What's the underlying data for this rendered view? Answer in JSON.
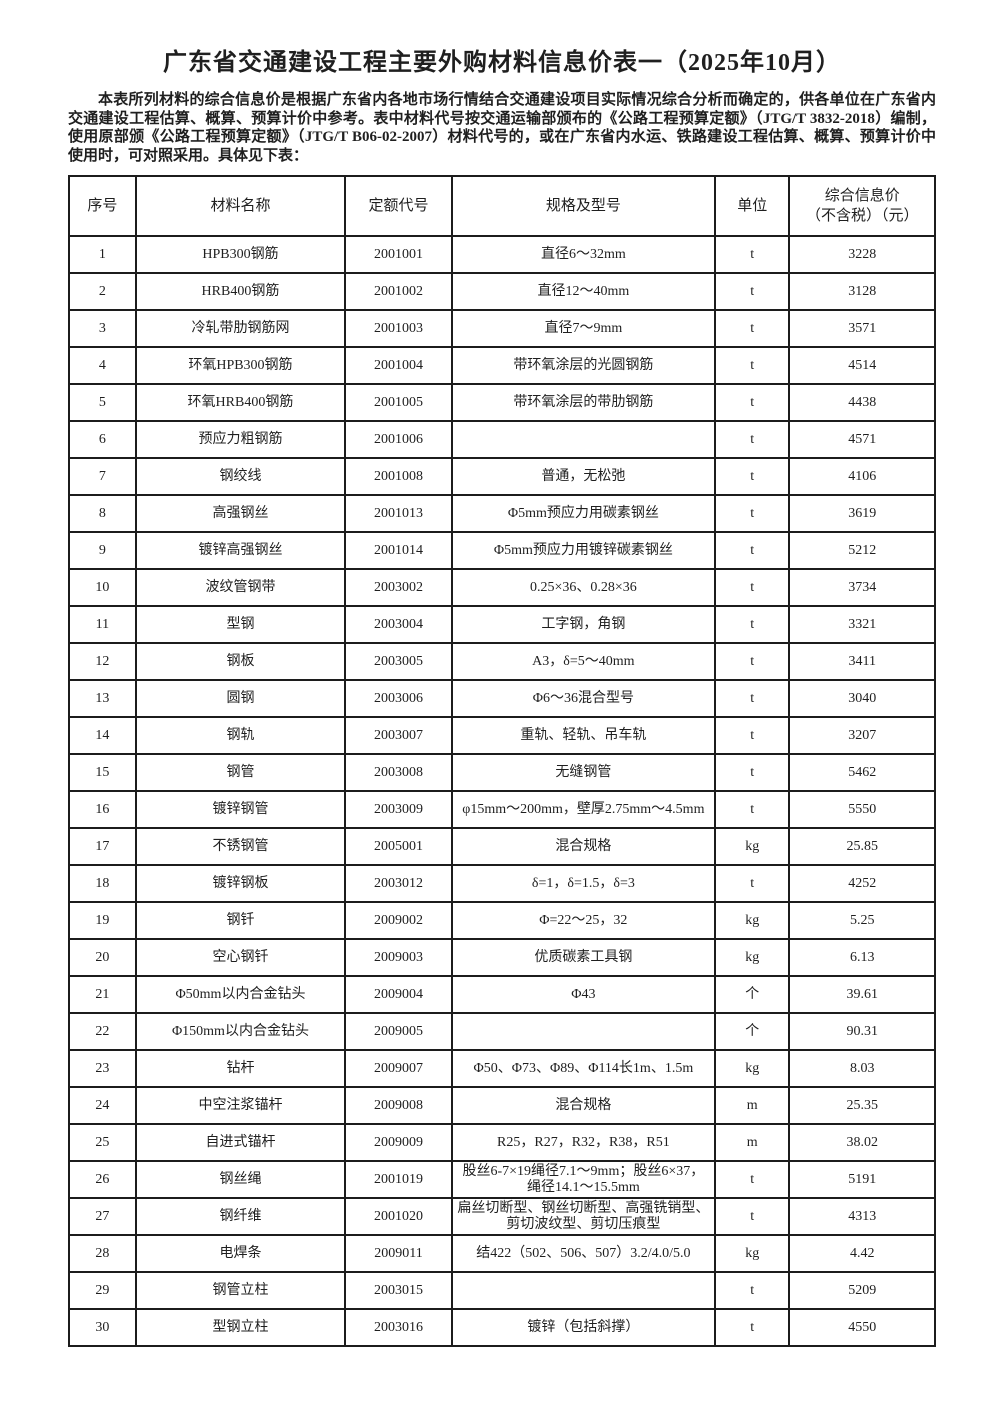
{
  "doc": {
    "title": "广东省交通建设工程主要外购材料信息价表一（2025年10月）",
    "intro": "本表所列材料的综合信息价是根据广东省内各地市场行情结合交通建设项目实际情况综合分析而确定的，供各单位在广东省内交通建设工程估算、概算、预算计价中参考。表中材料代号按交通运输部颁布的《公路工程预算定额》（JTG/T 3832-2018）编制，使用原部颁《公路工程预算定额》（JTG/T B06-02-2007）材料代号的，或在广东省内水运、铁路建设工程估算、概算、预算计价中使用时，可对照采用。具体见下表："
  },
  "table": {
    "headers": {
      "no": "序号",
      "name": "材料名称",
      "code": "定额代号",
      "spec": "规格及型号",
      "unit": "单位",
      "price": "综合信息价\n（不含税）（元）"
    },
    "rows": [
      {
        "no": "1",
        "name": "HPB300钢筋",
        "code": "2001001",
        "spec": "直径6～32mm",
        "unit": "t",
        "price": "3228"
      },
      {
        "no": "2",
        "name": "HRB400钢筋",
        "code": "2001002",
        "spec": "直径12～40mm",
        "unit": "t",
        "price": "3128"
      },
      {
        "no": "3",
        "name": "冷轧带肋钢筋网",
        "code": "2001003",
        "spec": "直径7～9mm",
        "unit": "t",
        "price": "3571"
      },
      {
        "no": "4",
        "name": "环氧HPB300钢筋",
        "code": "2001004",
        "spec": "带环氧涂层的光圆钢筋",
        "unit": "t",
        "price": "4514"
      },
      {
        "no": "5",
        "name": "环氧HRB400钢筋",
        "code": "2001005",
        "spec": "带环氧涂层的带肋钢筋",
        "unit": "t",
        "price": "4438"
      },
      {
        "no": "6",
        "name": "预应力粗钢筋",
        "code": "2001006",
        "spec": "",
        "unit": "t",
        "price": "4571"
      },
      {
        "no": "7",
        "name": "钢绞线",
        "code": "2001008",
        "spec": "普通，无松弛",
        "unit": "t",
        "price": "4106"
      },
      {
        "no": "8",
        "name": "高强钢丝",
        "code": "2001013",
        "spec": "Φ5mm预应力用碳素钢丝",
        "unit": "t",
        "price": "3619"
      },
      {
        "no": "9",
        "name": "镀锌高强钢丝",
        "code": "2001014",
        "spec": "Φ5mm预应力用镀锌碳素钢丝",
        "unit": "t",
        "price": "5212"
      },
      {
        "no": "10",
        "name": "波纹管钢带",
        "code": "2003002",
        "spec": "0.25×36、0.28×36",
        "unit": "t",
        "price": "3734"
      },
      {
        "no": "11",
        "name": "型钢",
        "code": "2003004",
        "spec": "工字钢，角钢",
        "unit": "t",
        "price": "3321"
      },
      {
        "no": "12",
        "name": "钢板",
        "code": "2003005",
        "spec": "A3，δ=5～40mm",
        "unit": "t",
        "price": "3411"
      },
      {
        "no": "13",
        "name": "圆钢",
        "code": "2003006",
        "spec": "Φ6～36混合型号",
        "unit": "t",
        "price": "3040"
      },
      {
        "no": "14",
        "name": "钢轨",
        "code": "2003007",
        "spec": "重轨、轻轨、吊车轨",
        "unit": "t",
        "price": "3207"
      },
      {
        "no": "15",
        "name": "钢管",
        "code": "2003008",
        "spec": "无缝钢管",
        "unit": "t",
        "price": "5462"
      },
      {
        "no": "16",
        "name": "镀锌钢管",
        "code": "2003009",
        "spec": "φ15mm～200mm，壁厚2.75mm～4.5mm",
        "unit": "t",
        "price": "5550"
      },
      {
        "no": "17",
        "name": "不锈钢管",
        "code": "2005001",
        "spec": "混合规格",
        "unit": "kg",
        "price": "25.85"
      },
      {
        "no": "18",
        "name": "镀锌钢板",
        "code": "2003012",
        "spec": "δ=1，δ=1.5，δ=3",
        "unit": "t",
        "price": "4252"
      },
      {
        "no": "19",
        "name": "钢钎",
        "code": "2009002",
        "spec": "Φ=22～25，32",
        "unit": "kg",
        "price": "5.25"
      },
      {
        "no": "20",
        "name": "空心钢钎",
        "code": "2009003",
        "spec": "优质碳素工具钢",
        "unit": "kg",
        "price": "6.13"
      },
      {
        "no": "21",
        "name": "Φ50mm以内合金钻头",
        "code": "2009004",
        "spec": "Φ43",
        "unit": "个",
        "price": "39.61"
      },
      {
        "no": "22",
        "name": "Φ150mm以内合金钻头",
        "code": "2009005",
        "spec": "",
        "unit": "个",
        "price": "90.31"
      },
      {
        "no": "23",
        "name": "钻杆",
        "code": "2009007",
        "spec": "Φ50、Φ73、Φ89、Φ114长1m、1.5m",
        "unit": "kg",
        "price": "8.03"
      },
      {
        "no": "24",
        "name": "中空注浆锚杆",
        "code": "2009008",
        "spec": "混合规格",
        "unit": "m",
        "price": "25.35"
      },
      {
        "no": "25",
        "name": "自进式锚杆",
        "code": "2009009",
        "spec": "R25，R27，R32，R38，R51",
        "unit": "m",
        "price": "38.02"
      },
      {
        "no": "26",
        "name": "钢丝绳",
        "code": "2001019",
        "spec": "股丝6-7×19绳径7.1～9mm；股丝6×37，绳径14.1～15.5mm",
        "unit": "t",
        "price": "5191"
      },
      {
        "no": "27",
        "name": "钢纤维",
        "code": "2001020",
        "spec": "扁丝切断型、钢丝切断型、高强铣销型、剪切波纹型、剪切压痕型",
        "unit": "t",
        "price": "4313"
      },
      {
        "no": "28",
        "name": "电焊条",
        "code": "2009011",
        "spec": "结422（502、506、507）3.2/4.0/5.0",
        "unit": "kg",
        "price": "4.42"
      },
      {
        "no": "29",
        "name": "钢管立柱",
        "code": "2003015",
        "spec": "",
        "unit": "t",
        "price": "5209"
      },
      {
        "no": "30",
        "name": "型钢立柱",
        "code": "2003016",
        "spec": "镀锌（包括斜撑）",
        "unit": "t",
        "price": "4550"
      }
    ]
  }
}
